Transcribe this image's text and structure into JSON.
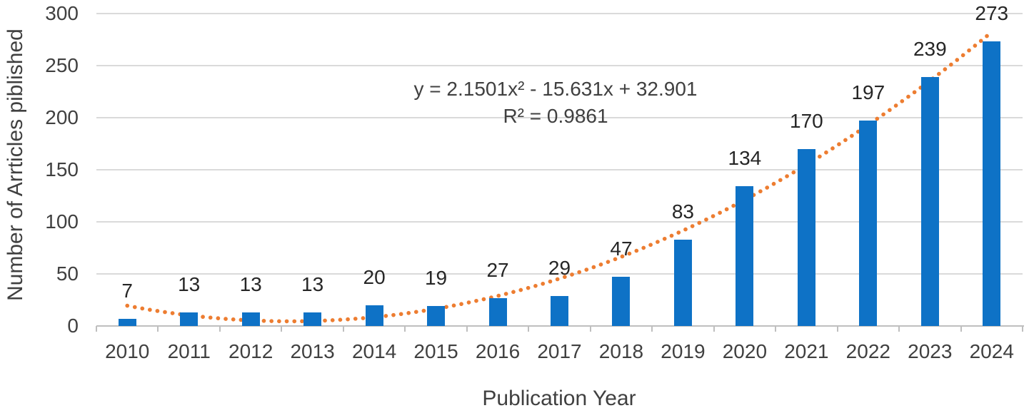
{
  "chart_data": {
    "type": "bar",
    "title": "",
    "categories": [
      "2010",
      "2011",
      "2012",
      "2013",
      "2014",
      "2015",
      "2016",
      "2017",
      "2018",
      "2019",
      "2020",
      "2021",
      "2022",
      "2023",
      "2024"
    ],
    "values": [
      7,
      13,
      13,
      13,
      20,
      19,
      27,
      29,
      47,
      83,
      134,
      170,
      197,
      239,
      273
    ],
    "xlabel": "Publication Year",
    "ylabel": "Number of Arrticles piblished",
    "ylim": [
      0,
      300
    ],
    "yticks": [
      0,
      50,
      100,
      150,
      200,
      250,
      300
    ],
    "grid": true,
    "legend": "none",
    "data_labels": "outside-end",
    "trendline": {
      "kind": "polynomial",
      "degree": 2,
      "a": 2.1501,
      "b": -15.631,
      "c": 32.901,
      "equation_label": "y = 2.1501x² - 15.631x + 32.901",
      "r2_label": "R² = 0.9861",
      "style": "dotted"
    },
    "colors": {
      "bar": "#0e72c6",
      "trend": "#ed7d31",
      "axis_text": "#404040",
      "data_label_text": "#262626",
      "gridline": "#dadada",
      "axis_line": "#bfbfbf"
    }
  }
}
